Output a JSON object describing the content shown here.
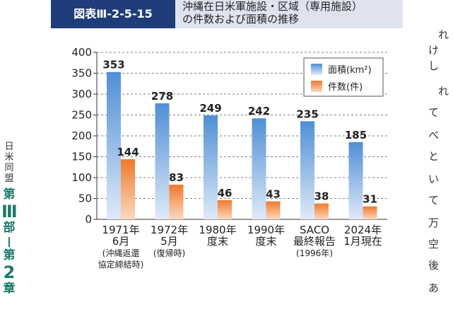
{
  "side_label": {
    "line1": [
      "日",
      "米",
      "同",
      "盟"
    ],
    "part": [
      "第",
      "Ⅲ",
      "部"
    ],
    "chapter": [
      "第",
      "2",
      "章"
    ]
  },
  "figure": {
    "label": "図表Ⅲ-2-5-15",
    "title_line1": "沖縄在日米軍施設・区域（専用施設）",
    "title_line2": "の件数および面積の推移"
  },
  "right_text": [
    "れ",
    "け",
    "し",
    "れ",
    "て",
    "べ",
    "と",
    "い",
    "て",
    "万",
    "空",
    "後",
    "あ"
  ],
  "chart_data": {
    "type": "bar",
    "categories": [
      [
        "1971年",
        "6月",
        "(沖縄返還",
        "協定締結時)"
      ],
      [
        "1972年",
        "5月",
        "(復帰時)"
      ],
      [
        "1980年",
        "度末"
      ],
      [
        "1990年",
        "度末"
      ],
      [
        "SACO",
        "最終報告",
        "(1996年)"
      ],
      [
        "2024年",
        "1月現在"
      ]
    ],
    "series": [
      {
        "name": "面積(km²)",
        "values": [
          353,
          278,
          249,
          242,
          235,
          185
        ],
        "color": "#4f8fd6"
      },
      {
        "name": "件数(件)",
        "values": [
          144,
          83,
          46,
          43,
          38,
          31
        ],
        "color": "#f0883a"
      }
    ],
    "yticks": [
      0,
      50,
      100,
      150,
      200,
      250,
      300,
      350,
      400
    ],
    "ylim": [
      0,
      400
    ],
    "grid": "dashed horizontal",
    "legend_position": "top-right"
  }
}
